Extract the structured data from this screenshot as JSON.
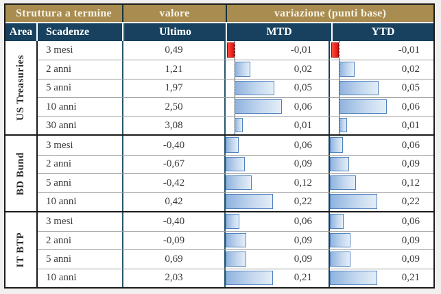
{
  "colors": {
    "header_gold": "#a98c4f",
    "header_navy": "#17415e",
    "bar_border": "#4f81bd",
    "bar_fill": "#8fb3de",
    "bar_negative": "#dd1010",
    "grid_teal": "#28566b",
    "outer_border": "#1a1a1a"
  },
  "header": {
    "group_struttura": "Struttura a termine",
    "group_valore": "valore",
    "group_variazione": "variazione (punti base)",
    "col_area": "Area",
    "col_scadenze": "Scadenze",
    "col_ultimo": "Ultimo",
    "col_mtd": "MTD",
    "col_ytd": "YTD"
  },
  "sections": [
    {
      "area": "US Treasuries",
      "rows": [
        {
          "scadenza": "3 mesi",
          "ultimo": "0,49",
          "mtd": "-0,01",
          "ytd": "-0,01",
          "mtd_val": -0.01,
          "ytd_val": -0.01
        },
        {
          "scadenza": "2 anni",
          "ultimo": "1,21",
          "mtd": "0,02",
          "ytd": "0,02",
          "mtd_val": 0.02,
          "ytd_val": 0.02
        },
        {
          "scadenza": "5 anni",
          "ultimo": "1,97",
          "mtd": "0,05",
          "ytd": "0,05",
          "mtd_val": 0.05,
          "ytd_val": 0.05
        },
        {
          "scadenza": "10 anni",
          "ultimo": "2,50",
          "mtd": "0,06",
          "ytd": "0,06",
          "mtd_val": 0.06,
          "ytd_val": 0.06
        },
        {
          "scadenza": "30 anni",
          "ultimo": "3,08",
          "mtd": "0,01",
          "ytd": "0,01",
          "mtd_val": 0.01,
          "ytd_val": 0.01
        }
      ]
    },
    {
      "area": "BD Bund",
      "rows": [
        {
          "scadenza": "3 mesi",
          "ultimo": "-0,40",
          "mtd": "0,06",
          "ytd": "0,06",
          "mtd_val": 0.06,
          "ytd_val": 0.06
        },
        {
          "scadenza": "2 anni",
          "ultimo": "-0,67",
          "mtd": "0,09",
          "ytd": "0,09",
          "mtd_val": 0.09,
          "ytd_val": 0.09
        },
        {
          "scadenza": "5 anni",
          "ultimo": "-0,42",
          "mtd": "0,12",
          "ytd": "0,12",
          "mtd_val": 0.12,
          "ytd_val": 0.12
        },
        {
          "scadenza": "10 anni",
          "ultimo": "0,42",
          "mtd": "0,22",
          "ytd": "0,22",
          "mtd_val": 0.22,
          "ytd_val": 0.22
        }
      ]
    },
    {
      "area": "IT BTP",
      "rows": [
        {
          "scadenza": "3 mesi",
          "ultimo": "-0,40",
          "mtd": "0,06",
          "ytd": "0,06",
          "mtd_val": 0.06,
          "ytd_val": 0.06
        },
        {
          "scadenza": "2 anni",
          "ultimo": "-0,09",
          "mtd": "0,09",
          "ytd": "0,09",
          "mtd_val": 0.09,
          "ytd_val": 0.09
        },
        {
          "scadenza": "5 anni",
          "ultimo": "0,69",
          "mtd": "0,09",
          "ytd": "0,09",
          "mtd_val": 0.09,
          "ytd_val": 0.09
        },
        {
          "scadenza": "10 anni",
          "ultimo": "2,03",
          "mtd": "0,21",
          "ytd": "0,21",
          "mtd_val": 0.21,
          "ytd_val": 0.21
        }
      ]
    }
  ],
  "chart_data": {
    "type": "table",
    "title": "Struttura a termine",
    "column_groups": [
      "Struttura a termine",
      "valore",
      "variazione (punti base)"
    ],
    "columns": [
      "Area",
      "Scadenze",
      "Ultimo",
      "MTD",
      "YTD"
    ],
    "rows": [
      [
        "US Treasuries",
        "3 mesi",
        0.49,
        -0.01,
        -0.01
      ],
      [
        "US Treasuries",
        "2 anni",
        1.21,
        0.02,
        0.02
      ],
      [
        "US Treasuries",
        "5 anni",
        1.97,
        0.05,
        0.05
      ],
      [
        "US Treasuries",
        "10 anni",
        2.5,
        0.06,
        0.06
      ],
      [
        "US Treasuries",
        "30 anni",
        3.08,
        0.01,
        0.01
      ],
      [
        "BD Bund",
        "3 mesi",
        -0.4,
        0.06,
        0.06
      ],
      [
        "BD Bund",
        "2 anni",
        -0.67,
        0.09,
        0.09
      ],
      [
        "BD Bund",
        "5 anni",
        -0.42,
        0.12,
        0.12
      ],
      [
        "BD Bund",
        "10 anni",
        0.42,
        0.22,
        0.22
      ],
      [
        "IT BTP",
        "3 mesi",
        -0.4,
        0.06,
        0.06
      ],
      [
        "IT BTP",
        "2 anni",
        -0.09,
        0.09,
        0.09
      ],
      [
        "IT BTP",
        "5 anni",
        0.69,
        0.09,
        0.09
      ],
      [
        "IT BTP",
        "10 anni",
        2.03,
        0.21,
        0.21
      ]
    ],
    "bar_columns": [
      "MTD",
      "YTD"
    ],
    "bar_style": "data-bars scaled per section, blue positive, red negative, dashed zero axis when negatives present",
    "decimal_separator": ","
  }
}
